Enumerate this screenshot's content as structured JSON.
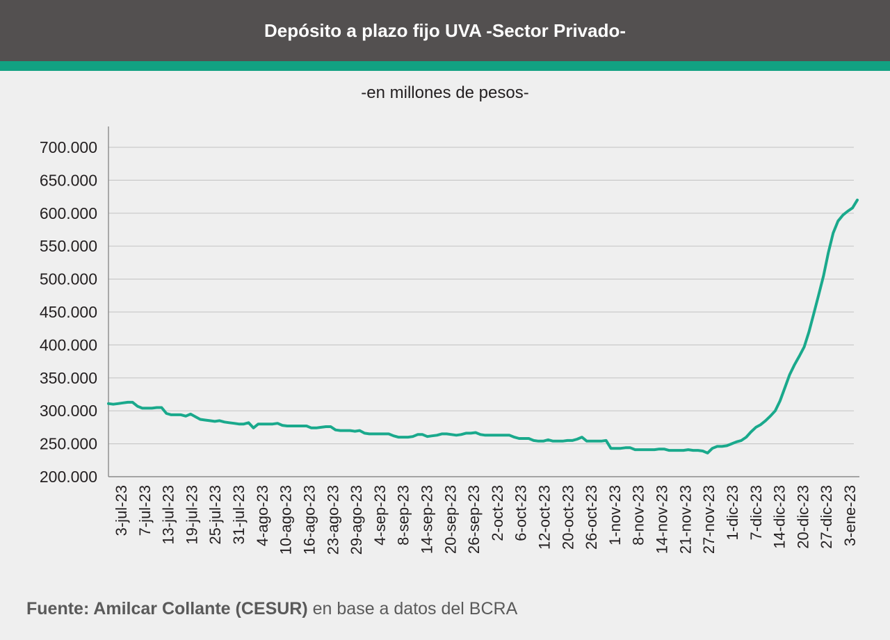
{
  "header": {
    "title": "Depósito a plazo fijo UVA -Sector Privado-"
  },
  "subtitle": "-en millones de pesos-",
  "source": {
    "bold": "Fuente: Amilcar Collante (CESUR)",
    "rest": " en base a datos del BCRA"
  },
  "colors": {
    "header_bg": "#535050",
    "accent": "#12a182",
    "line": "#1aa98c",
    "grid": "#c9c9c9",
    "background": "#efefef"
  },
  "chart_data": {
    "type": "line",
    "title": "Depósito a plazo fijo UVA -Sector Privado-",
    "subtitle": "-en millones de pesos-",
    "xlabel": "",
    "ylabel": "",
    "ylim": [
      200000,
      700000
    ],
    "y_ticks": [
      200000,
      250000,
      300000,
      350000,
      400000,
      450000,
      500000,
      550000,
      600000,
      650000,
      700000
    ],
    "y_tick_labels": [
      "200.000",
      "250.000",
      "300.000",
      "350.000",
      "400.000",
      "450.000",
      "500.000",
      "550.000",
      "600.000",
      "650.000",
      "700.000"
    ],
    "grid": true,
    "x_tick_labels": [
      "3-jul-23",
      "7-jul-23",
      "13-jul-23",
      "19-jul-23",
      "25-jul-23",
      "31-jul-23",
      "4-ago-23",
      "10-ago-23",
      "16-ago-23",
      "23-ago-23",
      "29-ago-23",
      "4-sep-23",
      "8-sep-23",
      "14-sep-23",
      "20-sep-23",
      "26-sep-23",
      "2-oct-23",
      "6-oct-23",
      "12-oct-23",
      "20-oct-23",
      "26-oct-23",
      "1-nov-23",
      "8-nov-23",
      "14-nov-23",
      "21-nov-23",
      "27-nov-23",
      "1-dic-23",
      "7-dic-23",
      "14-dic-23",
      "20-dic-23",
      "27-dic-23",
      "3-ene-23"
    ],
    "series": [
      {
        "values": [
          311000,
          310000,
          311000,
          312000,
          313000,
          313000,
          307000,
          304000,
          304000,
          304000,
          305000,
          305000,
          296000,
          294000,
          294000,
          294000,
          292000,
          295000,
          291000,
          287000,
          286000,
          285000,
          284000,
          285000,
          283000,
          282000,
          281000,
          280000,
          280000,
          282000,
          274000,
          280000,
          280000,
          280000,
          280000,
          281000,
          278000,
          277000,
          277000,
          277000,
          277000,
          277000,
          274000,
          274000,
          275000,
          276000,
          276000,
          271000,
          270000,
          270000,
          270000,
          269000,
          270000,
          266000,
          265000,
          265000,
          265000,
          265000,
          265000,
          262000,
          260000,
          260000,
          260000,
          261000,
          264000,
          264000,
          261000,
          262000,
          263000,
          265000,
          265000,
          264000,
          263000,
          264000,
          266000,
          266000,
          267000,
          264000,
          263000,
          263000,
          263000,
          263000,
          263000,
          263000,
          260000,
          258000,
          258000,
          258000,
          255000,
          254000,
          254000,
          256000,
          254000,
          254000,
          254000,
          255000,
          255000,
          257000,
          260000,
          254000,
          254000,
          254000,
          254000,
          255000,
          243000,
          243000,
          243000,
          244000,
          244000,
          241000,
          241000,
          241000,
          241000,
          241000,
          242000,
          242000,
          240000,
          240000,
          240000,
          240000,
          241000,
          240000,
          240000,
          239000,
          236000,
          243000,
          246000,
          246000,
          247000,
          250000,
          253000,
          255000,
          260000,
          268000,
          275000,
          279000,
          285000,
          292000,
          300000,
          315000,
          335000,
          355000,
          370000,
          383000,
          397000,
          420000,
          448000,
          476000,
          505000,
          540000,
          570000,
          588000,
          597000,
          603000,
          608000,
          620000
        ]
      }
    ]
  }
}
